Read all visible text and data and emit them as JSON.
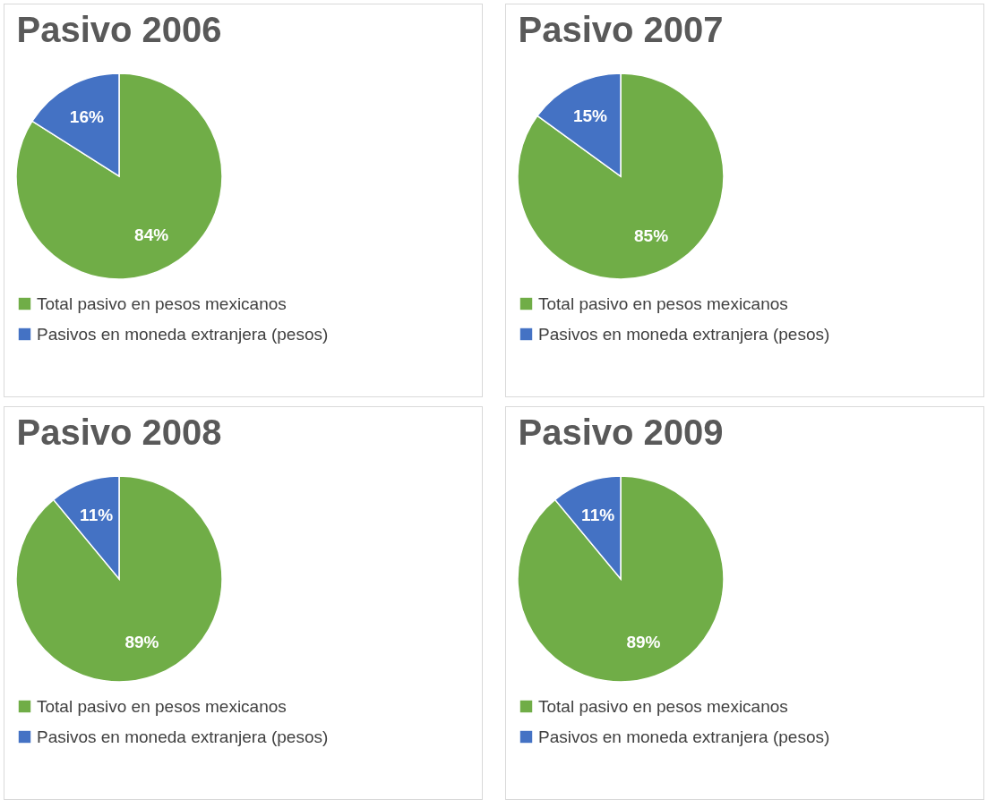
{
  "chart_data": [
    {
      "type": "pie",
      "title": "Pasivo 2006",
      "categories": [
        "Total pasivo en pesos mexicanos",
        "Pasivos en moneda extranjera (pesos)"
      ],
      "values": [
        84,
        16
      ],
      "colors": [
        "#70ad47",
        "#4472c4"
      ],
      "value_labels": [
        "84%",
        "16%"
      ],
      "legend": "bottom"
    },
    {
      "type": "pie",
      "title": "Pasivo 2007",
      "categories": [
        "Total pasivo en pesos mexicanos",
        "Pasivos en moneda extranjera (pesos)"
      ],
      "values": [
        85,
        15
      ],
      "colors": [
        "#70ad47",
        "#4472c4"
      ],
      "value_labels": [
        "85%",
        "15%"
      ],
      "legend": "bottom"
    },
    {
      "type": "pie",
      "title": "Pasivo 2008",
      "categories": [
        "Total pasivo en pesos mexicanos",
        "Pasivos en moneda extranjera (pesos)"
      ],
      "values": [
        89,
        11
      ],
      "colors": [
        "#70ad47",
        "#4472c4"
      ],
      "value_labels": [
        "89%",
        "11%"
      ],
      "legend": "bottom"
    },
    {
      "type": "pie",
      "title": "Pasivo 2009",
      "categories": [
        "Total pasivo en pesos mexicanos",
        "Pasivos en moneda extranjera (pesos)"
      ],
      "values": [
        89,
        11
      ],
      "colors": [
        "#70ad47",
        "#4472c4"
      ],
      "value_labels": [
        "89%",
        "11%"
      ],
      "legend": "bottom"
    }
  ]
}
